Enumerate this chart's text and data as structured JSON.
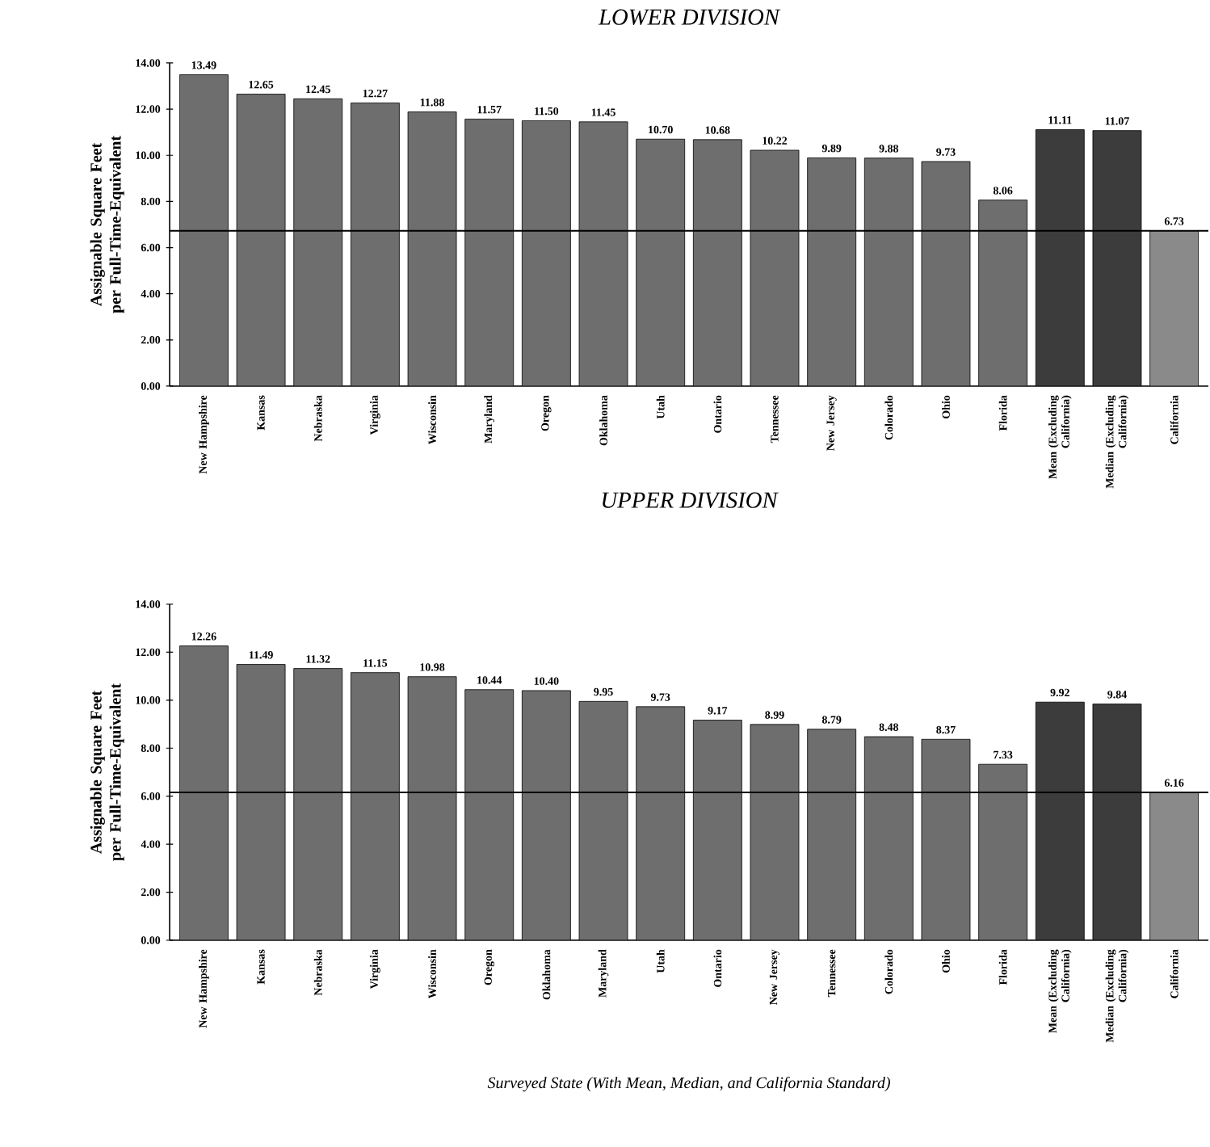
{
  "chart_data": [
    {
      "type": "bar",
      "title": "LOWER DIVISION",
      "ylabel": "Assignable Square Feet per Full-Time-Equivalent",
      "categories": [
        "New Hampshire",
        "Kansas",
        "Nebraska",
        "Virginia",
        "Wisconsin",
        "Maryland",
        "Oregon",
        "Oklahoma",
        "Utah",
        "Ontario",
        "Tennessee",
        "New Jersey",
        "Colorado",
        "Ohio",
        "Florida",
        "Mean (Excluding California)",
        "Median (Excluding California)",
        "California"
      ],
      "values": [
        13.49,
        12.65,
        12.45,
        12.27,
        11.88,
        11.57,
        11.5,
        11.45,
        10.7,
        10.68,
        10.22,
        9.89,
        9.88,
        9.73,
        8.06,
        11.11,
        11.07,
        6.73
      ],
      "colors": [
        "#6e6e6e",
        "#6e6e6e",
        "#6e6e6e",
        "#6e6e6e",
        "#6e6e6e",
        "#6e6e6e",
        "#6e6e6e",
        "#6e6e6e",
        "#6e6e6e",
        "#6e6e6e",
        "#6e6e6e",
        "#6e6e6e",
        "#6e6e6e",
        "#6e6e6e",
        "#6e6e6e",
        "#3c3c3c",
        "#3c3c3c",
        "#8a8a8a"
      ],
      "ylim": [
        0,
        14
      ],
      "yticks": [
        {
          "value": 0,
          "label": "0.00"
        },
        {
          "value": 2,
          "label": "2.00"
        },
        {
          "value": 4,
          "label": "4.00"
        },
        {
          "value": 6,
          "label": "6.00"
        },
        {
          "value": 8,
          "label": "8.00"
        },
        {
          "value": 10,
          "label": "10.00"
        },
        {
          "value": 12,
          "label": "12.00"
        },
        {
          "value": 14,
          "label": "14.00"
        }
      ],
      "value_labels": [
        "13.49",
        "12.65",
        "12.45",
        "12.27",
        "11.88",
        "11.57",
        "11.50",
        "11.45",
        "10.70",
        "10.68",
        "10.22",
        "9.89",
        "9.88",
        "9.73",
        "8.06",
        "11.11",
        "11.07",
        "6.73"
      ],
      "ref_lines": [
        {
          "axis": "y",
          "value": 6.73,
          "color": "#000000"
        }
      ]
    },
    {
      "type": "bar",
      "title": "UPPER DIVISION",
      "ylabel": "Assignable Square Feet per Full-Time-Equivalent",
      "xlabel": "Surveyed State (With Mean, Median, and California Standard)",
      "categories": [
        "New Hampshire",
        "Kansas",
        "Nebraska",
        "Virginia",
        "Wisconsin",
        "Oregon",
        "Oklahoma",
        "Maryland",
        "Utah",
        "Ontario",
        "New Jersey",
        "Tennessee",
        "Colorado",
        "Ohio",
        "Florida",
        "Mean (Excluding California)",
        "Median (Excluding California)",
        "California"
      ],
      "values": [
        12.26,
        11.49,
        11.32,
        11.15,
        10.98,
        10.44,
        10.4,
        9.95,
        9.73,
        9.17,
        8.99,
        8.79,
        8.48,
        8.37,
        7.33,
        9.92,
        9.84,
        6.16
      ],
      "colors": [
        "#6e6e6e",
        "#6e6e6e",
        "#6e6e6e",
        "#6e6e6e",
        "#6e6e6e",
        "#6e6e6e",
        "#6e6e6e",
        "#6e6e6e",
        "#6e6e6e",
        "#6e6e6e",
        "#6e6e6e",
        "#6e6e6e",
        "#6e6e6e",
        "#6e6e6e",
        "#6e6e6e",
        "#3c3c3c",
        "#3c3c3c",
        "#8a8a8a"
      ],
      "ylim": [
        0,
        14
      ],
      "yticks": [
        {
          "value": 0,
          "label": "0.00"
        },
        {
          "value": 2,
          "label": "2.00"
        },
        {
          "value": 4,
          "label": "4.00"
        },
        {
          "value": 6,
          "label": "6.00"
        },
        {
          "value": 8,
          "label": "8.00"
        },
        {
          "value": 10,
          "label": "10.00"
        },
        {
          "value": 12,
          "label": "12.00"
        },
        {
          "value": 14,
          "label": "14.00"
        }
      ],
      "value_labels": [
        "12.26",
        "11.49",
        "11.32",
        "11.15",
        "10.98",
        "10.44",
        "10.40",
        "9.95",
        "9.73",
        "9.17",
        "8.99",
        "8.79",
        "8.48",
        "8.37",
        "7.33",
        "9.92",
        "9.84",
        "6.16"
      ],
      "ref_lines": [
        {
          "axis": "y",
          "value": 6.16,
          "color": "#000000"
        }
      ]
    }
  ]
}
